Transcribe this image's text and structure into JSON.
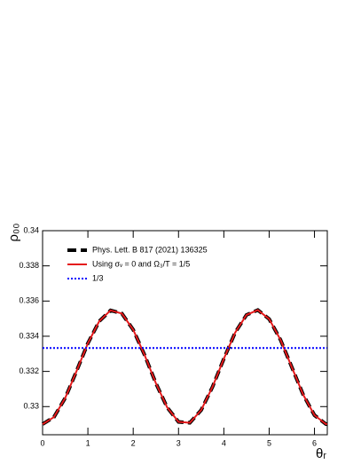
{
  "chart_data": {
    "type": "line",
    "x_label": "θᵣ",
    "y_label": "ρ₀₀",
    "xlim": [
      0,
      6.283
    ],
    "ylim": [
      0.3284,
      0.34
    ],
    "xticks": [
      0,
      1,
      2,
      3,
      4,
      5,
      6
    ],
    "yticks": [
      0.33,
      0.332,
      0.334,
      0.336,
      0.338,
      0.34
    ],
    "legend": "top-left",
    "series": [
      {
        "name": "Phys. Lett. B 817 (2021) 136325",
        "color": "#000000",
        "line_style": "dashed",
        "line_width": 4,
        "x": [
          0,
          0.25,
          0.5,
          0.75,
          1,
          1.25,
          1.5,
          1.75,
          2,
          2.25,
          2.5,
          2.75,
          3,
          3.25,
          3.5,
          3.75,
          4,
          4.25,
          4.5,
          4.75,
          5,
          5.25,
          5.5,
          5.75,
          6,
          6.25,
          6.28
        ],
        "values": [
          0.329,
          0.3294,
          0.33049,
          0.33202,
          0.3336,
          0.33485,
          0.33547,
          0.33529,
          0.33437,
          0.33294,
          0.33133,
          0.32995,
          0.32913,
          0.32908,
          0.3298,
          0.33112,
          0.33272,
          0.33421,
          0.33521,
          0.33549,
          0.33498,
          0.3338,
          0.33224,
          0.33068,
          0.32951,
          0.32901,
          0.329
        ]
      },
      {
        "name": "Using σᵥ = 0 and Ω₃/T = 1/5",
        "color": "#e41a1c",
        "line_style": "solid",
        "line_width": 2,
        "x": [
          0,
          0.25,
          0.5,
          0.75,
          1,
          1.25,
          1.5,
          1.75,
          2,
          2.25,
          2.5,
          2.75,
          3,
          3.25,
          3.5,
          3.75,
          4,
          4.25,
          4.5,
          4.75,
          5,
          5.25,
          5.5,
          5.75,
          6,
          6.25,
          6.28
        ],
        "values": [
          0.329,
          0.3294,
          0.33049,
          0.33202,
          0.3336,
          0.33485,
          0.33547,
          0.33529,
          0.33437,
          0.33294,
          0.33133,
          0.32995,
          0.32913,
          0.32908,
          0.3298,
          0.33112,
          0.33272,
          0.33421,
          0.33521,
          0.33549,
          0.33498,
          0.3338,
          0.33224,
          0.33068,
          0.32951,
          0.32901,
          0.329
        ]
      },
      {
        "name": "1/3",
        "color": "#0000ff",
        "line_style": "dotted",
        "line_width": 2,
        "x": [
          0,
          6.28
        ],
        "values": [
          0.33333,
          0.33333
        ]
      }
    ]
  }
}
